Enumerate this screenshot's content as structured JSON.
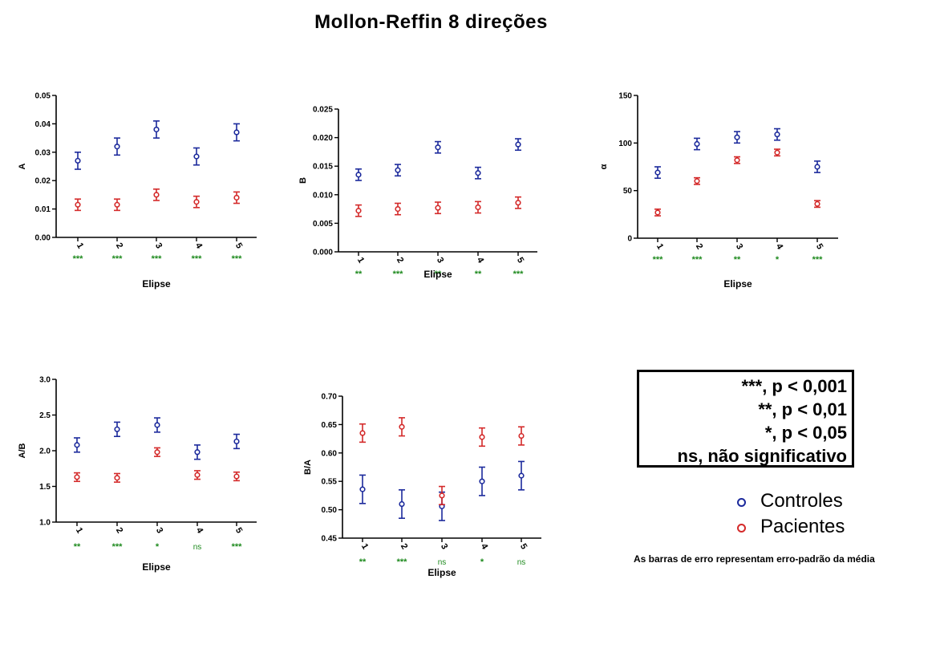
{
  "title": "Mollon-Reffin 8 direções",
  "colors": {
    "controles": "#1c2a9c",
    "pacientes": "#d42a2a",
    "significance": "#1e8a1e",
    "axis": "#000000"
  },
  "chart_data": [
    {
      "type": "scatter",
      "ylabel": "A",
      "xlabel": "Elipse",
      "ylim": [
        0,
        0.05
      ],
      "yticks": [
        "0.00",
        "0.01",
        "0.02",
        "0.03",
        "0.04",
        "0.05"
      ],
      "categories": [
        "1",
        "2",
        "3",
        "4",
        "5"
      ],
      "series": [
        {
          "name": "Controles",
          "color": "#1c2a9c",
          "values": [
            0.027,
            0.032,
            0.038,
            0.0285,
            0.037
          ],
          "errors": [
            0.003,
            0.003,
            0.003,
            0.003,
            0.003
          ]
        },
        {
          "name": "Pacientes",
          "color": "#d42a2a",
          "values": [
            0.0115,
            0.0115,
            0.015,
            0.0125,
            0.014
          ],
          "errors": [
            0.002,
            0.002,
            0.002,
            0.002,
            0.002
          ]
        }
      ],
      "significance": [
        "***",
        "***",
        "***",
        "***",
        "***"
      ]
    },
    {
      "type": "scatter",
      "ylabel": "B",
      "xlabel": "Elipse",
      "ylim": [
        0,
        0.025
      ],
      "yticks": [
        "0.000",
        "0.005",
        "0.010",
        "0.015",
        "0.020",
        "0.025"
      ],
      "categories": [
        "1",
        "2",
        "3",
        "4",
        "5"
      ],
      "series": [
        {
          "name": "Controles",
          "color": "#1c2a9c",
          "values": [
            0.0135,
            0.0143,
            0.0183,
            0.0138,
            0.0188
          ],
          "errors": [
            0.001,
            0.001,
            0.001,
            0.001,
            0.001
          ]
        },
        {
          "name": "Pacientes",
          "color": "#d42a2a",
          "values": [
            0.0072,
            0.0075,
            0.0077,
            0.0078,
            0.0086
          ],
          "errors": [
            0.001,
            0.001,
            0.001,
            0.001,
            0.001
          ]
        }
      ],
      "significance": [
        "**",
        "***",
        "**",
        "**",
        "***"
      ]
    },
    {
      "type": "scatter",
      "ylabel": "α",
      "xlabel": "Elipse",
      "ylim": [
        0,
        150
      ],
      "yticks": [
        "0",
        "50",
        "100",
        "150"
      ],
      "categories": [
        "1",
        "2",
        "3",
        "4",
        "5"
      ],
      "series": [
        {
          "name": "Controles",
          "color": "#1c2a9c",
          "values": [
            69,
            99,
            106,
            109,
            75
          ],
          "errors": [
            6,
            6,
            6,
            6,
            6
          ]
        },
        {
          "name": "Pacientes",
          "color": "#d42a2a",
          "values": [
            27,
            60,
            82,
            90,
            36
          ],
          "errors": [
            3.5,
            3.5,
            3.5,
            3.5,
            3.5
          ]
        }
      ],
      "significance": [
        "***",
        "***",
        "**",
        "*",
        "***"
      ]
    },
    {
      "type": "scatter",
      "ylabel": "A/B",
      "xlabel": "Elipse",
      "ylim": [
        1.0,
        3.0
      ],
      "yticks": [
        "1.0",
        "1.5",
        "2.0",
        "2.5",
        "3.0"
      ],
      "categories": [
        "1",
        "2",
        "3",
        "4",
        "5"
      ],
      "series": [
        {
          "name": "Controles",
          "color": "#1c2a9c",
          "values": [
            2.08,
            2.3,
            2.36,
            1.98,
            2.13
          ],
          "errors": [
            0.1,
            0.1,
            0.1,
            0.1,
            0.1
          ]
        },
        {
          "name": "Pacientes",
          "color": "#d42a2a",
          "values": [
            1.63,
            1.62,
            1.98,
            1.66,
            1.64
          ],
          "errors": [
            0.06,
            0.06,
            0.06,
            0.06,
            0.06
          ]
        }
      ],
      "significance": [
        "**",
        "***",
        "*",
        "ns",
        "***"
      ]
    },
    {
      "type": "scatter",
      "ylabel": "B/A",
      "xlabel": "Elipse",
      "ylim": [
        0.45,
        0.7
      ],
      "yticks": [
        "0.45",
        "0.50",
        "0.55",
        "0.60",
        "0.65",
        "0.70"
      ],
      "categories": [
        "1",
        "2",
        "3",
        "4",
        "5"
      ],
      "series": [
        {
          "name": "Controles",
          "color": "#1c2a9c",
          "values": [
            0.536,
            0.51,
            0.506,
            0.55,
            0.56
          ],
          "errors": [
            0.025,
            0.025,
            0.025,
            0.025,
            0.025
          ]
        },
        {
          "name": "Pacientes",
          "color": "#d42a2a",
          "values": [
            0.635,
            0.646,
            0.525,
            0.628,
            0.63
          ],
          "errors": [
            0.016,
            0.016,
            0.016,
            0.016,
            0.016
          ]
        }
      ],
      "significance": [
        "**",
        "***",
        "ns",
        "*",
        "ns"
      ]
    }
  ],
  "significance_box": [
    "***, p  < 0,001",
    "**, p < 0,01",
    "*, p < 0,05",
    "ns, não significativo"
  ],
  "legend": [
    {
      "label": "Controles",
      "color": "#1c2a9c"
    },
    {
      "label": "Pacientes",
      "color": "#d42a2a"
    }
  ],
  "footnote": "As barras de erro representam erro-padrão da média"
}
